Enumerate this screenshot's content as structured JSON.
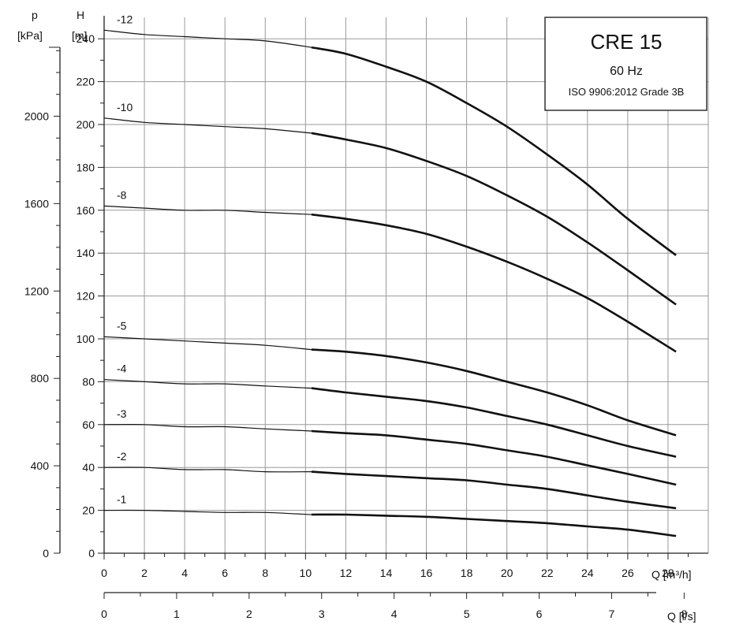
{
  "chart_data": {
    "type": "line",
    "title": "CRE 15",
    "subtitle": "60 Hz",
    "standard": "ISO 9906:2012 Grade 3B",
    "y_head": {
      "label_top": "H",
      "label_unit": "[m]",
      "range": [
        0,
        250
      ],
      "ticks": [
        0,
        20,
        40,
        60,
        80,
        100,
        120,
        140,
        160,
        180,
        200,
        220,
        240
      ]
    },
    "y_pressure": {
      "label_top": "p",
      "label_unit": "[kPa]",
      "ticks": [
        0,
        400,
        800,
        1200,
        1600,
        2000
      ]
    },
    "x_flow": {
      "label": "Q [m³/h]",
      "range": [
        0,
        30
      ],
      "ticks": [
        0,
        2,
        4,
        6,
        8,
        10,
        12,
        14,
        16,
        18,
        20,
        22,
        24,
        26,
        28
      ]
    },
    "x_flow_ls": {
      "label": "Q [l/s]",
      "ticks": [
        0,
        1,
        2,
        3,
        4,
        5,
        6,
        7,
        8
      ]
    },
    "grid": true,
    "thick_from_q": 10.3,
    "series": [
      {
        "name": "-12",
        "x": [
          0,
          2,
          4,
          6,
          8,
          10.3,
          12,
          14,
          16,
          18,
          20,
          22,
          24,
          26,
          28.4
        ],
        "y": [
          244,
          242,
          241,
          240,
          239,
          236,
          233,
          227,
          220,
          210,
          199,
          186,
          172,
          156,
          139
        ]
      },
      {
        "name": "-10",
        "x": [
          0,
          2,
          4,
          6,
          8,
          10.3,
          12,
          14,
          16,
          18,
          20,
          22,
          24,
          26,
          28.4
        ],
        "y": [
          203,
          201,
          200,
          199,
          198,
          196,
          193,
          189,
          183,
          176,
          167,
          157,
          145,
          132,
          116
        ]
      },
      {
        "name": "-8",
        "x": [
          0,
          2,
          4,
          6,
          8,
          10.3,
          12,
          14,
          16,
          18,
          20,
          22,
          24,
          26,
          28.4
        ],
        "y": [
          162,
          161,
          160,
          160,
          159,
          158,
          156,
          153,
          149,
          143,
          136,
          128,
          119,
          108,
          94
        ]
      },
      {
        "name": "-5",
        "x": [
          0,
          2,
          4,
          6,
          8,
          10.3,
          12,
          14,
          16,
          18,
          20,
          22,
          24,
          26,
          28.4
        ],
        "y": [
          101,
          100,
          99,
          98,
          97,
          95,
          94,
          92,
          89,
          85,
          80,
          75,
          69,
          62,
          55
        ]
      },
      {
        "name": "-4",
        "x": [
          0,
          2,
          4,
          6,
          8,
          10.3,
          12,
          14,
          16,
          18,
          20,
          22,
          24,
          26,
          28.4
        ],
        "y": [
          81,
          80,
          79,
          79,
          78,
          77,
          75,
          73,
          71,
          68,
          64,
          60,
          55,
          50,
          45
        ]
      },
      {
        "name": "-3",
        "x": [
          0,
          2,
          4,
          6,
          8,
          10.3,
          12,
          14,
          16,
          18,
          20,
          22,
          24,
          26,
          28.4
        ],
        "y": [
          60,
          60,
          59,
          59,
          58,
          57,
          56,
          55,
          53,
          51,
          48,
          45,
          41,
          37,
          32
        ]
      },
      {
        "name": "-2",
        "x": [
          0,
          2,
          4,
          6,
          8,
          10.3,
          12,
          14,
          16,
          18,
          20,
          22,
          24,
          26,
          28.4
        ],
        "y": [
          40,
          40,
          39,
          39,
          38,
          38,
          37,
          36,
          35,
          34,
          32,
          30,
          27,
          24,
          21
        ]
      },
      {
        "name": "-1",
        "x": [
          0,
          2,
          4,
          6,
          8,
          10.3,
          12,
          14,
          16,
          18,
          20,
          22,
          24,
          26,
          28.4
        ],
        "y": [
          20,
          20,
          19.5,
          19,
          19,
          18,
          18,
          17.5,
          17,
          16,
          15,
          14,
          12.5,
          11,
          8
        ]
      }
    ]
  }
}
